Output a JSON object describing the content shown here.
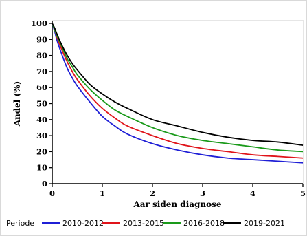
{
  "chart_data": {
    "type": "line",
    "xlabel": "Aar siden diagnose",
    "ylabel": "Andel (%)",
    "xlim": [
      0,
      5
    ],
    "ylim": [
      0,
      100
    ],
    "xticks": [
      "0",
      "1",
      "2",
      "3",
      "4",
      "5"
    ],
    "yticks": [
      "0",
      "10",
      "20",
      "30",
      "40",
      "50",
      "60",
      "70",
      "80",
      "90",
      "100"
    ],
    "grid": false,
    "legend": {
      "title": "Periode",
      "position": "bottom"
    },
    "series": [
      {
        "name": "2010-2012",
        "color": "#1f1fd6",
        "x": [
          0,
          0.05,
          0.1,
          0.2,
          0.3,
          0.4,
          0.5,
          0.75,
          1.0,
          1.25,
          1.5,
          2.0,
          2.5,
          3.0,
          3.5,
          4.0,
          4.5,
          5.0
        ],
        "y": [
          100,
          95,
          89,
          80,
          72,
          66,
          61,
          51,
          42,
          36,
          31,
          25,
          21,
          18,
          16,
          15,
          14,
          13
        ]
      },
      {
        "name": "2013-2015",
        "color": "#e0141a",
        "x": [
          0,
          0.05,
          0.1,
          0.2,
          0.3,
          0.4,
          0.5,
          0.75,
          1.0,
          1.25,
          1.5,
          2.0,
          2.5,
          3.0,
          3.5,
          4.0,
          4.5,
          5.0
        ],
        "y": [
          100,
          96,
          91,
          83,
          76,
          70,
          65,
          55,
          47,
          41,
          36,
          30,
          25,
          22,
          20,
          18,
          17,
          16
        ]
      },
      {
        "name": "2016-2018",
        "color": "#1a9a1a",
        "x": [
          0,
          0.05,
          0.1,
          0.2,
          0.3,
          0.4,
          0.5,
          0.75,
          1.0,
          1.25,
          1.5,
          2.0,
          2.5,
          3.0,
          3.5,
          4.0,
          4.5,
          5.0
        ],
        "y": [
          100,
          96,
          92,
          85,
          78,
          73,
          68,
          59,
          52,
          46,
          42,
          35,
          30,
          27,
          25,
          23,
          21,
          20
        ]
      },
      {
        "name": "2019-2021",
        "color": "#000000",
        "x": [
          0,
          0.05,
          0.1,
          0.2,
          0.3,
          0.4,
          0.5,
          0.75,
          1.0,
          1.25,
          1.5,
          2.0,
          2.5,
          3.0,
          3.5,
          4.0,
          4.5,
          5.0
        ],
        "y": [
          100,
          97,
          93,
          86,
          80,
          75,
          71,
          62,
          56,
          51,
          47,
          40,
          36,
          32,
          29,
          27,
          26,
          24
        ]
      }
    ]
  }
}
